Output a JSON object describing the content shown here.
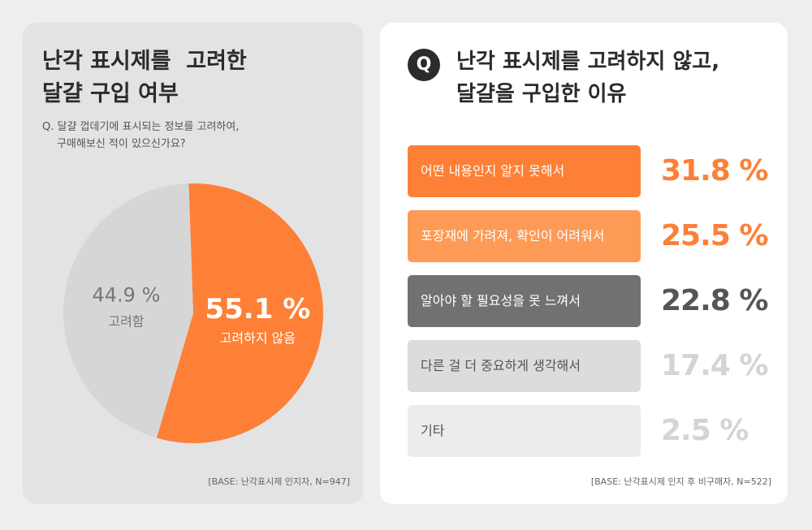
{
  "left": {
    "title_line1": "난각 표시제를  고려한",
    "title_line2": "달걀 구입 여부",
    "question_line1": "Q. 달걀 껍데기에 표시되는 정보를 고려하여,",
    "question_line2": "구매해보신 적이 있으신가요?",
    "base": "[BASE: 난각표시제 인지자, N=947]"
  },
  "right": {
    "badge": "Q",
    "title_line1": "난각 표시제를 고려하지 않고,",
    "title_line2": "달걀을 구입한 이유",
    "base": "[BASE: 난각표시제 인지 후 비구매자, N=522]"
  },
  "colors": {
    "orange": "#fd8036",
    "light_orange": "#fd9a55",
    "dark_gray": "#717171",
    "light_gray": "#dcdcdc",
    "lighter_gray": "#ececec",
    "pie_gray": "#d6d6d6"
  },
  "chart_data": [
    {
      "type": "pie",
      "title": "난각 표시제를  고려한 달걀 구입 여부",
      "slices": [
        {
          "label": "고려하지 않음",
          "value": 55.1,
          "value_label": "55.1 %",
          "color": "#fd8036"
        },
        {
          "label": "고려함",
          "value": 44.9,
          "value_label": "44.9 %",
          "color": "#d6d6d6"
        }
      ]
    },
    {
      "type": "bar",
      "title": "난각 표시제를 고려하지 않고, 달걀을 구입한 이유",
      "categories": [
        "어떤 내용인지 알지 못해서",
        "포장재에 가려져, 확인이 어려워서",
        "알아야 할 필요성을 못 느껴서",
        "다른 걸 더 중요하게 생각해서",
        "기타"
      ],
      "values": [
        31.8,
        25.5,
        22.8,
        17.4,
        2.5
      ],
      "value_labels": [
        "31.8 %",
        "25.5 %",
        "22.8 %",
        "17.4 %",
        "2.5 %"
      ],
      "box_colors": [
        "#fd8036",
        "#fd9a55",
        "#717171",
        "#dcdcdc",
        "#ececec"
      ],
      "label_colors": [
        "#ffffff",
        "#ffffff",
        "#ffffff",
        "#555555",
        "#555555"
      ],
      "value_colors": [
        "#fd8036",
        "#fd8036",
        "#555555",
        "#d4d4d4",
        "#d4d4d4"
      ]
    }
  ]
}
